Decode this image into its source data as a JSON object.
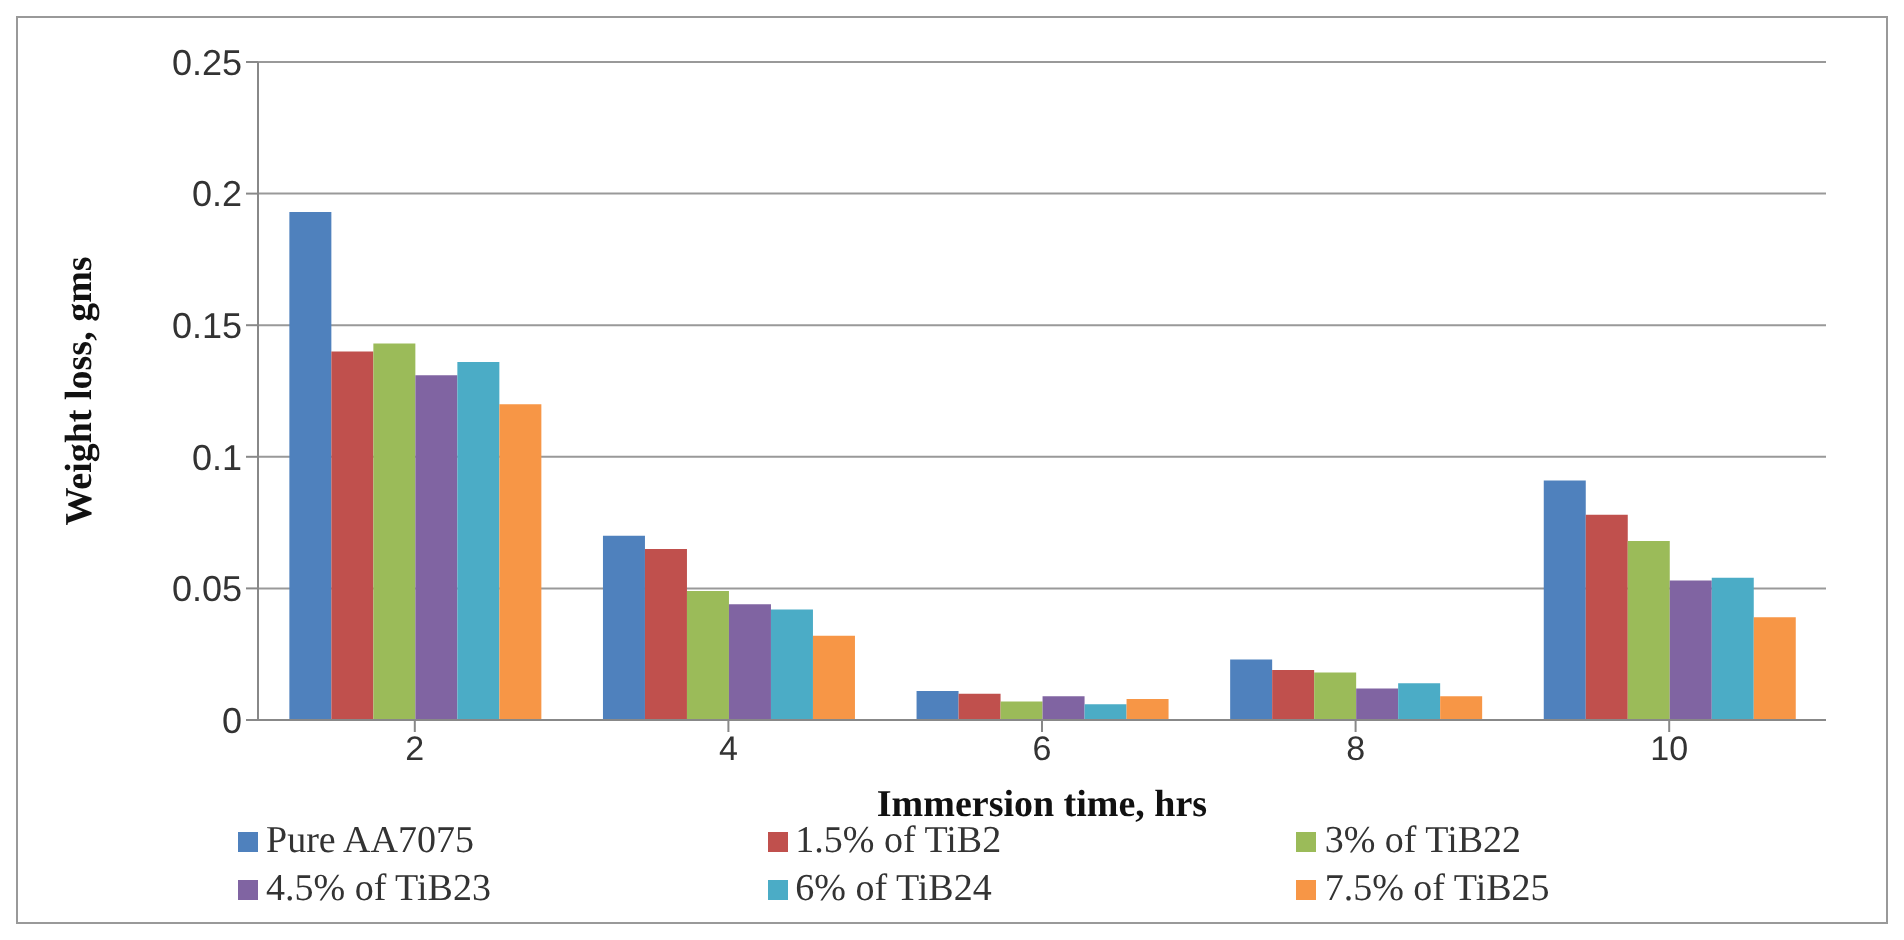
{
  "chart_data": {
    "type": "bar",
    "xlabel": "Immersion time, hrs",
    "ylabel": "Weight loss, gms",
    "categories": [
      "2",
      "4",
      "6",
      "8",
      "10"
    ],
    "series": [
      {
        "name": "Pure AA7075",
        "color": "#4f81bd",
        "values": [
          0.193,
          0.07,
          0.011,
          0.023,
          0.091
        ]
      },
      {
        "name": "1.5% of TiB2",
        "color": "#c0504d",
        "values": [
          0.14,
          0.065,
          0.01,
          0.019,
          0.078
        ]
      },
      {
        "name": "3% of TiB22",
        "color": "#9bbb59",
        "values": [
          0.143,
          0.049,
          0.007,
          0.018,
          0.068
        ]
      },
      {
        "name": "4.5% of TiB23",
        "color": "#8064a2",
        "values": [
          0.131,
          0.044,
          0.009,
          0.012,
          0.053
        ]
      },
      {
        "name": "6% of TiB24",
        "color": "#4bacc6",
        "values": [
          0.136,
          0.042,
          0.006,
          0.014,
          0.054
        ]
      },
      {
        "name": "7.5% of TiB25",
        "color": "#f79646",
        "values": [
          0.12,
          0.032,
          0.008,
          0.009,
          0.039
        ]
      }
    ],
    "ylim": [
      0,
      0.25
    ],
    "yticks": [
      0,
      0.05,
      0.1,
      0.15,
      0.2,
      0.25
    ],
    "grid": "y",
    "legend": "bottom"
  }
}
